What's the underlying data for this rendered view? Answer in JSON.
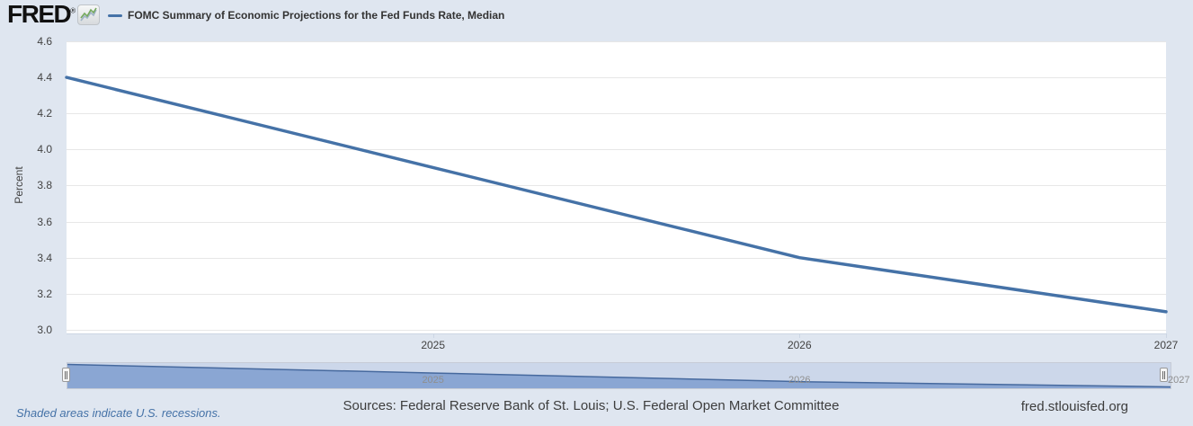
{
  "header": {
    "logo_text": "FRED",
    "logo_registered_mark": "®",
    "legend_label": "FOMC Summary of Economic Projections for the Fed Funds Rate, Median"
  },
  "chart_data": {
    "type": "line",
    "title": "FOMC Summary of Economic Projections for the Fed Funds Rate, Median",
    "ylabel": "Percent",
    "x": [
      2024,
      2025,
      2026,
      2027
    ],
    "values": [
      4.4,
      3.9,
      3.4,
      3.1
    ],
    "ylim": [
      2.98,
      4.6
    ],
    "yticks": [
      3.0,
      3.2,
      3.4,
      3.6,
      3.8,
      4.0,
      4.2,
      4.4,
      4.6
    ],
    "xticks": [
      2025,
      2026,
      2027
    ],
    "grid": "horizontal",
    "legend_position": "top-left",
    "line_color": "#4572a7"
  },
  "navigator": {
    "labels": [
      "2025",
      "2026",
      "2027"
    ],
    "label_years": [
      2025,
      2026,
      2027
    ],
    "area_color": "#8aa6d3",
    "line_color": "#46699e",
    "background_color": "#ccd7ea"
  },
  "footer": {
    "recession_note": "Shaded areas indicate U.S. recessions.",
    "sources": "Sources: Federal Reserve Bank of St. Louis; U.S. Federal Open Market Committee",
    "site_link": "fred.stlouisfed.org"
  },
  "colors": {
    "page_background": "#dfe6f0",
    "plot_background": "#ffffff",
    "gridline": "#e7e7e7",
    "axis_text": "#424242",
    "accent_blue": "#4572a7"
  }
}
